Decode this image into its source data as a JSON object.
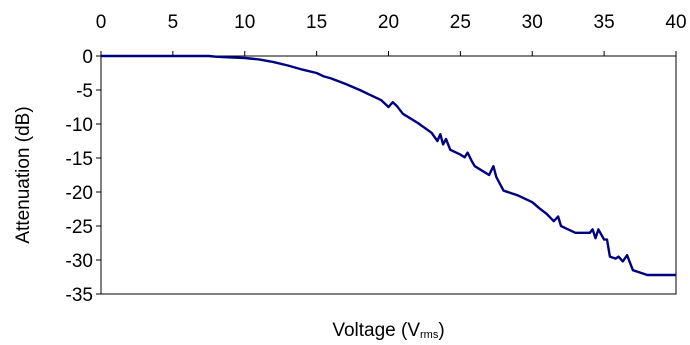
{
  "chart_data": {
    "type": "line",
    "title": "",
    "xlabel": "Voltage (V",
    "xlabel_subscript": "rms",
    "xlabel_close": ")",
    "ylabel": "Attenuation (dB)",
    "xlim": [
      0,
      40
    ],
    "ylim": [
      -35,
      0
    ],
    "x_ticks": [
      0,
      5,
      10,
      15,
      20,
      25,
      30,
      35,
      40
    ],
    "y_ticks": [
      0,
      -5,
      -10,
      -15,
      -20,
      -25,
      -30,
      -35
    ],
    "x_axis_position": "top",
    "grid": false,
    "legend": "none",
    "line_color": "#000080",
    "series": [
      {
        "x": [
          0,
          2,
          4,
          6,
          7.5,
          8,
          9,
          10,
          11,
          12,
          13,
          14,
          15,
          15.5,
          16,
          17,
          18,
          19,
          19.5,
          20,
          20.3,
          20.6,
          21,
          22,
          23,
          23.4,
          23.6,
          23.8,
          24,
          24.3,
          25,
          25.3,
          25.5,
          25.8,
          26,
          27,
          27.3,
          27.5,
          28,
          29,
          30,
          30.5,
          31,
          31.5,
          31.8,
          32,
          32.5,
          33,
          33.5,
          34,
          34.2,
          34.4,
          34.6,
          35,
          35.2,
          35.4,
          35.8,
          36,
          36.3,
          36.6,
          37,
          38,
          40
        ],
        "y": [
          0,
          0,
          0,
          0,
          0,
          -0.1,
          -0.2,
          -0.3,
          -0.5,
          -0.9,
          -1.4,
          -2.0,
          -2.5,
          -3.0,
          -3.3,
          -4.1,
          -5.0,
          -6.0,
          -6.5,
          -7.5,
          -6.8,
          -7.4,
          -8.5,
          -9.8,
          -11.3,
          -12.5,
          -11.5,
          -13.0,
          -12.2,
          -13.8,
          -14.5,
          -14.9,
          -14.2,
          -15.5,
          -16.2,
          -17.5,
          -16.2,
          -17.8,
          -19.8,
          -20.5,
          -21.5,
          -22.4,
          -23.2,
          -24.3,
          -23.6,
          -25.0,
          -25.5,
          -26.0,
          -26.0,
          -26.0,
          -25.5,
          -26.8,
          -25.5,
          -27.0,
          -27.0,
          -29.5,
          -29.8,
          -29.5,
          -30.2,
          -29.3,
          -31.5,
          -32.2,
          -32.2
        ]
      }
    ]
  }
}
